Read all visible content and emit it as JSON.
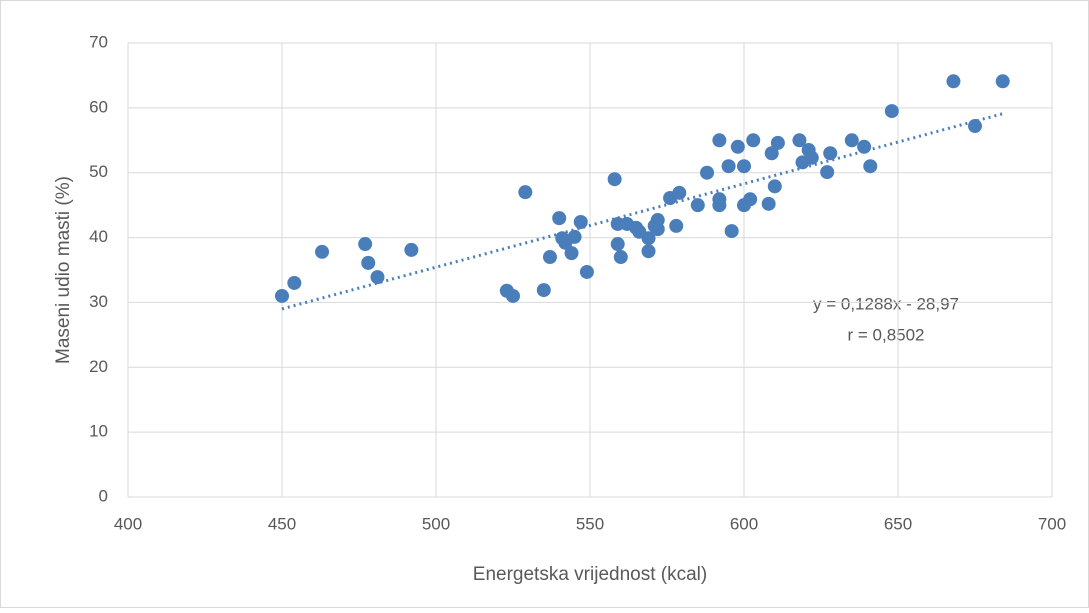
{
  "chart_data": {
    "type": "scatter",
    "x_label": "Energetska vrijednost (kcal)",
    "y_label": "Maseni udio masti (%)",
    "xlim": [
      400,
      700
    ],
    "xticks": [
      400,
      450,
      500,
      550,
      600,
      650,
      700
    ],
    "ylim": [
      0,
      70
    ],
    "yticks": [
      0,
      10,
      20,
      30,
      40,
      50,
      60,
      70
    ],
    "grid": true,
    "series": [
      {
        "color": "#4a7ebb",
        "x": [
          450,
          454,
          463,
          477,
          478,
          481,
          492,
          523,
          525,
          529,
          535,
          537,
          540,
          541,
          542,
          544,
          545,
          547,
          549,
          558,
          559,
          559,
          560,
          562,
          565,
          566,
          569,
          569,
          571,
          572,
          572,
          576,
          578,
          579,
          585,
          588,
          592,
          592,
          592,
          595,
          596,
          598,
          600,
          600,
          602,
          603,
          608,
          609,
          610,
          611,
          618,
          619,
          621,
          622,
          627,
          628,
          635,
          639,
          641,
          648,
          668,
          675,
          684
        ],
        "values": [
          31.0,
          33.0,
          37.8,
          39.0,
          36.1,
          33.9,
          38.1,
          31.8,
          31.0,
          47.0,
          31.9,
          37.0,
          43.0,
          39.9,
          39.2,
          37.6,
          40.1,
          42.4,
          34.7,
          49.0,
          42.1,
          39.0,
          37.0,
          42.1,
          41.5,
          40.9,
          39.9,
          37.9,
          41.8,
          42.7,
          41.3,
          46.1,
          41.8,
          46.9,
          45.0,
          50.0,
          55.0,
          45.9,
          45.0,
          51.0,
          41.0,
          54.0,
          45.0,
          51.0,
          45.9,
          55.0,
          45.2,
          53.0,
          47.9,
          54.6,
          55.0,
          51.6,
          53.5,
          52.3,
          50.1,
          53.0,
          55.0,
          54.0,
          51.0,
          59.5,
          64.1,
          57.2,
          64.1
        ]
      }
    ],
    "trendline": {
      "color": "#4a7ebb",
      "x": [
        450,
        684
      ],
      "values": [
        29.0,
        59.1
      ]
    },
    "annotations": [
      "y = 0,1288x - 28,97",
      "r = 0,8502"
    ]
  }
}
